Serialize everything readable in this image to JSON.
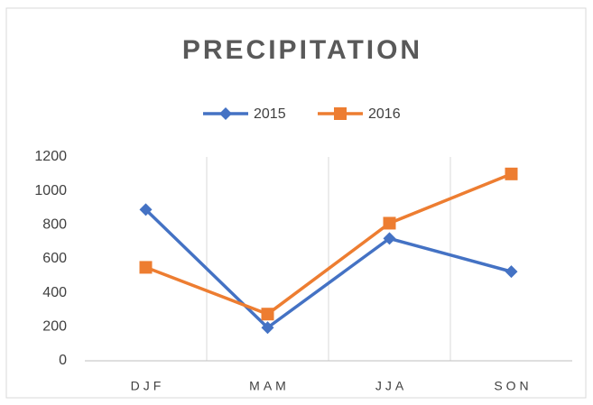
{
  "chart_data": {
    "type": "line",
    "title": "PRECIPITATION",
    "categories": [
      "DJF",
      "MAM",
      "JJA",
      "SON"
    ],
    "series": [
      {
        "name": "2015",
        "color": "#4472c4",
        "marker": "diamond",
        "values": [
          890,
          195,
          720,
          525
        ]
      },
      {
        "name": "2016",
        "color": "#ed7d31",
        "marker": "square",
        "values": [
          550,
          275,
          810,
          1100
        ]
      }
    ],
    "ylim": [
      0,
      1200
    ],
    "yticks": [
      0,
      200,
      400,
      600,
      800,
      1000,
      1200
    ],
    "vertical_grid": true,
    "legend": "top"
  }
}
